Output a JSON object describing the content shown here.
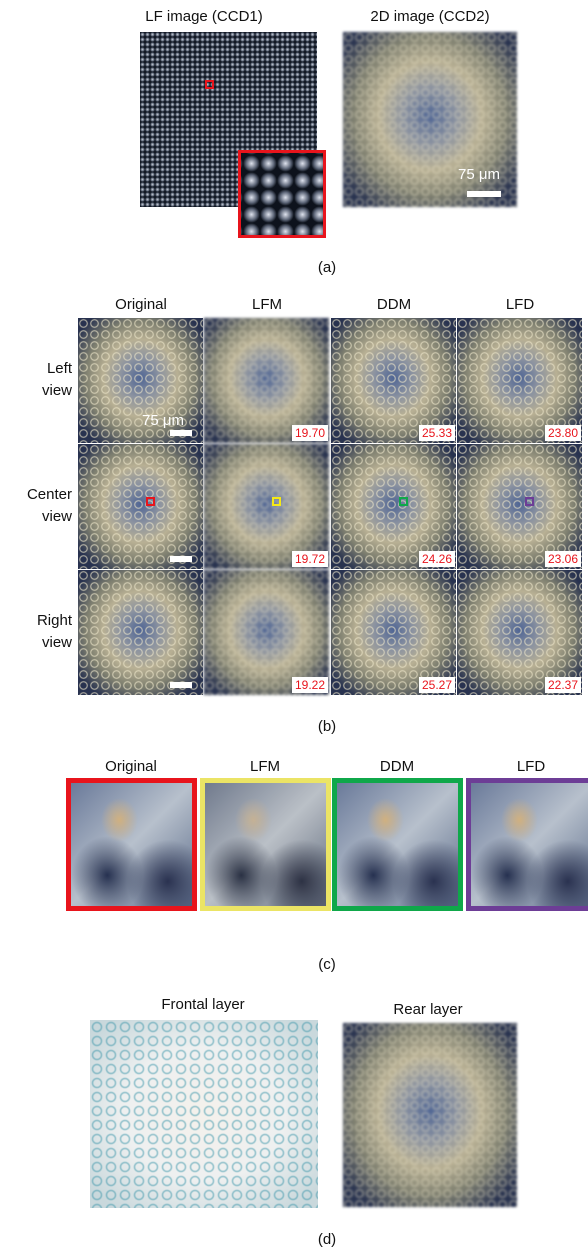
{
  "panel_a": {
    "titles": [
      "LF image (CCD1)",
      "2D image (CCD2)"
    ],
    "scale_bar": "75 μm",
    "label": "(a)"
  },
  "panel_b": {
    "columns": [
      "Original",
      "LFM",
      "DDM",
      "LFD"
    ],
    "rows": [
      {
        "name": "Left view",
        "scores": [
          "19.70",
          "25.33",
          "23.80"
        ]
      },
      {
        "name": "Center view",
        "scores": [
          "19.72",
          "24.26",
          "23.06"
        ]
      },
      {
        "name": "Right view",
        "scores": [
          "19.22",
          "25.27",
          "22.37"
        ]
      }
    ],
    "scale_bar": "75 μm",
    "label": "(b)"
  },
  "panel_c": {
    "columns": [
      "Original",
      "LFM",
      "DDM",
      "LFD"
    ],
    "colors": [
      "#e8141c",
      "#f5e915",
      "#0fa84a",
      "#6d3d96"
    ],
    "label": "(c)"
  },
  "panel_d": {
    "titles": [
      "Frontal layer",
      "Rear layer"
    ],
    "label": "(d)"
  }
}
